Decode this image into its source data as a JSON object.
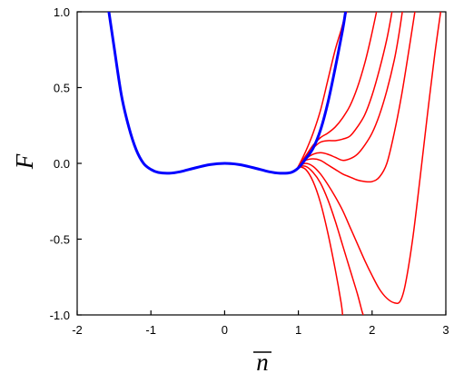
{
  "chart_data": {
    "type": "line",
    "xlabel": "n",
    "xlabel_overbar": true,
    "ylabel": "F",
    "xlim": [
      -2,
      3
    ],
    "ylim": [
      -1.0,
      1.0
    ],
    "grid": false,
    "x_ticks": [
      -2,
      -1,
      0,
      1,
      2,
      3
    ],
    "x_tick_labels": [
      "-2",
      "-1",
      "0",
      "1",
      "2",
      "3"
    ],
    "y_ticks": [
      1.0,
      0.5,
      0.0,
      -0.5,
      -1.0
    ],
    "y_tick_labels": [
      "1.0",
      "0.5",
      "0.0",
      "-0.5",
      "-1.0"
    ],
    "series": [
      {
        "color": "#0000ff",
        "points": [
          [
            -1.57,
            1.0
          ],
          [
            -1.5,
            0.77
          ],
          [
            -1.4,
            0.45
          ],
          [
            -1.3,
            0.24
          ],
          [
            -1.2,
            0.09
          ],
          [
            -1.1,
            0.0
          ],
          [
            -1.0,
            -0.04
          ],
          [
            -0.9,
            -0.06
          ],
          [
            -0.75,
            -0.065
          ],
          [
            -0.6,
            -0.055
          ],
          [
            -0.4,
            -0.03
          ],
          [
            -0.2,
            -0.008
          ],
          [
            0.0,
            0.0
          ],
          [
            0.2,
            -0.008
          ],
          [
            0.4,
            -0.03
          ],
          [
            0.6,
            -0.055
          ],
          [
            0.75,
            -0.065
          ],
          [
            0.9,
            -0.06
          ],
          [
            1.0,
            -0.03
          ],
          [
            1.1,
            0.03
          ],
          [
            1.2,
            0.1
          ],
          [
            1.3,
            0.22
          ],
          [
            1.4,
            0.4
          ],
          [
            1.5,
            0.63
          ],
          [
            1.6,
            0.88
          ],
          [
            1.64,
            1.0
          ]
        ]
      },
      {
        "color": "#ff0000",
        "points": [
          [
            1.0,
            -0.02
          ],
          [
            1.1,
            0.08
          ],
          [
            1.2,
            0.2
          ],
          [
            1.3,
            0.35
          ],
          [
            1.4,
            0.55
          ],
          [
            1.5,
            0.75
          ],
          [
            1.58,
            0.88
          ],
          [
            1.63,
            0.97
          ],
          [
            1.66,
            1.0
          ]
        ]
      },
      {
        "color": "#ff0000",
        "points": [
          [
            1.0,
            -0.02
          ],
          [
            1.1,
            0.05
          ],
          [
            1.2,
            0.12
          ],
          [
            1.3,
            0.17
          ],
          [
            1.4,
            0.2
          ],
          [
            1.5,
            0.24
          ],
          [
            1.6,
            0.3
          ],
          [
            1.7,
            0.38
          ],
          [
            1.8,
            0.5
          ],
          [
            1.9,
            0.66
          ],
          [
            1.98,
            0.82
          ],
          [
            2.06,
            1.0
          ]
        ]
      },
      {
        "color": "#ff0000",
        "points": [
          [
            1.0,
            -0.02
          ],
          [
            1.1,
            0.04
          ],
          [
            1.2,
            0.1
          ],
          [
            1.3,
            0.14
          ],
          [
            1.4,
            0.15
          ],
          [
            1.5,
            0.15
          ],
          [
            1.6,
            0.16
          ],
          [
            1.7,
            0.18
          ],
          [
            1.8,
            0.24
          ],
          [
            1.9,
            0.32
          ],
          [
            2.0,
            0.45
          ],
          [
            2.1,
            0.62
          ],
          [
            2.2,
            0.82
          ],
          [
            2.27,
            1.0
          ]
        ]
      },
      {
        "color": "#ff0000",
        "points": [
          [
            1.0,
            -0.02
          ],
          [
            1.1,
            0.03
          ],
          [
            1.2,
            0.06
          ],
          [
            1.3,
            0.07
          ],
          [
            1.4,
            0.06
          ],
          [
            1.5,
            0.04
          ],
          [
            1.6,
            0.02
          ],
          [
            1.7,
            0.03
          ],
          [
            1.8,
            0.06
          ],
          [
            1.9,
            0.12
          ],
          [
            2.0,
            0.2
          ],
          [
            2.1,
            0.32
          ],
          [
            2.2,
            0.48
          ],
          [
            2.3,
            0.68
          ],
          [
            2.36,
            0.84
          ],
          [
            2.41,
            1.0
          ]
        ]
      },
      {
        "color": "#ff0000",
        "points": [
          [
            1.0,
            -0.02
          ],
          [
            1.1,
            0.02
          ],
          [
            1.2,
            0.03
          ],
          [
            1.3,
            0.02
          ],
          [
            1.4,
            -0.01
          ],
          [
            1.5,
            -0.04
          ],
          [
            1.6,
            -0.07
          ],
          [
            1.7,
            -0.09
          ],
          [
            1.8,
            -0.11
          ],
          [
            1.9,
            -0.12
          ],
          [
            2.0,
            -0.12
          ],
          [
            2.1,
            -0.09
          ],
          [
            2.2,
            0.0
          ],
          [
            2.3,
            0.2
          ],
          [
            2.4,
            0.45
          ],
          [
            2.5,
            0.75
          ],
          [
            2.58,
            1.0
          ]
        ]
      },
      {
        "color": "#ff0000",
        "points": [
          [
            1.0,
            -0.02
          ],
          [
            1.1,
            0.0
          ],
          [
            1.2,
            -0.02
          ],
          [
            1.3,
            -0.07
          ],
          [
            1.4,
            -0.14
          ],
          [
            1.5,
            -0.22
          ],
          [
            1.6,
            -0.31
          ],
          [
            1.7,
            -0.42
          ],
          [
            1.8,
            -0.53
          ],
          [
            1.9,
            -0.64
          ],
          [
            2.0,
            -0.74
          ],
          [
            2.1,
            -0.83
          ],
          [
            2.2,
            -0.89
          ],
          [
            2.3,
            -0.92
          ],
          [
            2.38,
            -0.91
          ],
          [
            2.45,
            -0.8
          ],
          [
            2.55,
            -0.5
          ],
          [
            2.65,
            -0.1
          ],
          [
            2.75,
            0.32
          ],
          [
            2.85,
            0.72
          ],
          [
            2.93,
            1.0
          ]
        ]
      },
      {
        "color": "#ff0000",
        "points": [
          [
            1.0,
            -0.02
          ],
          [
            1.1,
            -0.02
          ],
          [
            1.2,
            -0.06
          ],
          [
            1.3,
            -0.13
          ],
          [
            1.4,
            -0.24
          ],
          [
            1.5,
            -0.38
          ],
          [
            1.6,
            -0.54
          ],
          [
            1.7,
            -0.7
          ],
          [
            1.8,
            -0.86
          ],
          [
            1.86,
            -0.97
          ],
          [
            1.88,
            -1.0
          ]
        ]
      },
      {
        "color": "#ff0000",
        "points": [
          [
            1.0,
            -0.02
          ],
          [
            1.1,
            -0.04
          ],
          [
            1.2,
            -0.12
          ],
          [
            1.3,
            -0.26
          ],
          [
            1.4,
            -0.46
          ],
          [
            1.5,
            -0.7
          ],
          [
            1.58,
            -0.92
          ],
          [
            1.6,
            -1.0
          ]
        ]
      }
    ]
  }
}
